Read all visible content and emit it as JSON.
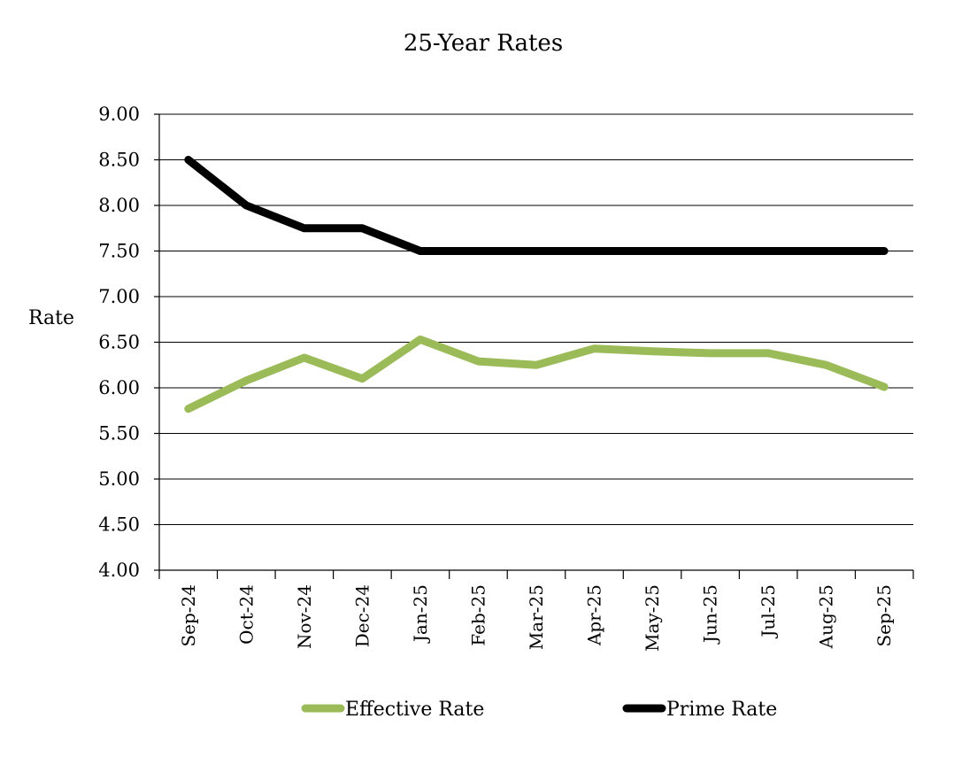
{
  "chart_data": {
    "type": "line",
    "title": "25-Year Rates",
    "ylabel": "Rate",
    "xlabel": "",
    "ylim": [
      4.0,
      9.0
    ],
    "ystep": 0.5,
    "yticks": [
      "4.00",
      "4.50",
      "5.00",
      "5.50",
      "6.00",
      "6.50",
      "7.00",
      "7.50",
      "8.00",
      "8.50",
      "9.00"
    ],
    "grid": true,
    "legend_position": "bottom",
    "categories": [
      "Sep-24",
      "Oct-24",
      "Nov-24",
      "Dec-24",
      "Jan-25",
      "Feb-25",
      "Mar-25",
      "Apr-25",
      "May-25",
      "Jun-25",
      "Jul-25",
      "Aug-25",
      "Sep-25"
    ],
    "series": [
      {
        "name": "Effective Rate",
        "color": "#9BBB59",
        "values": [
          5.77,
          6.08,
          6.33,
          6.1,
          6.53,
          6.29,
          6.25,
          6.43,
          6.4,
          6.38,
          6.38,
          6.25,
          6.01
        ]
      },
      {
        "name": "Prime Rate",
        "color": "#000000",
        "values": [
          8.5,
          8.0,
          7.75,
          7.75,
          7.5,
          7.5,
          7.5,
          7.5,
          7.5,
          7.5,
          7.5,
          7.5,
          7.5
        ]
      }
    ]
  }
}
